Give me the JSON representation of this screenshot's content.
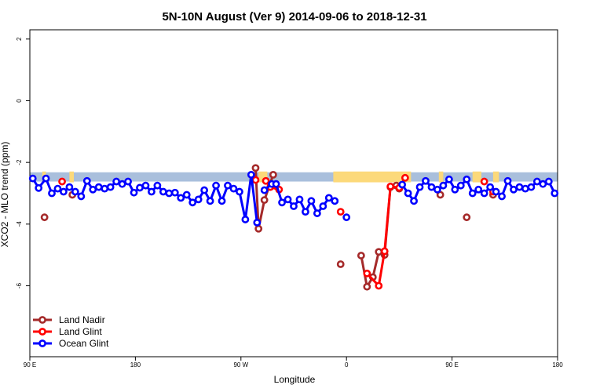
{
  "chart_data": {
    "type": "line",
    "title": "5N-10N August (Ver 9)   2014-09-06 to 2018-12-31",
    "xlabel": "Longitude",
    "ylabel": "XCO2 - MLO trend (ppm)",
    "xlim": [
      0,
      360
    ],
    "ylim": [
      -8.3,
      2.3
    ],
    "x_ticks": [
      {
        "value": 0,
        "label": "90 E"
      },
      {
        "value": 72,
        "label": "180"
      },
      {
        "value": 144,
        "label": "90 W"
      },
      {
        "value": 216,
        "label": "0"
      },
      {
        "value": 288,
        "label": "90 E"
      },
      {
        "value": 360,
        "label": "180"
      }
    ],
    "y_ticks": [
      {
        "value": 2,
        "label": "2"
      },
      {
        "value": 0,
        "label": "0"
      },
      {
        "value": -2,
        "label": "-2"
      },
      {
        "value": -4,
        "label": "-4"
      },
      {
        "value": -6,
        "label": "-6"
      }
    ],
    "band": {
      "y_min": -2.62,
      "y_max": -2.32,
      "color": "#a9bfdc"
    },
    "land_patches": {
      "color": "#fcd97a",
      "ranges": [
        [
          8.5,
          11
        ],
        [
          27,
          30
        ],
        [
          156,
          162
        ],
        [
          207,
          260
        ],
        [
          279,
          282
        ],
        [
          302,
          308
        ],
        [
          316,
          320
        ]
      ]
    },
    "legend_position": "bottom-left",
    "series": [
      {
        "name": "Land Nadir",
        "color": "#a52a2a",
        "points": [
          [
            10,
            -3.78
          ],
          [
            29,
            -3.05
          ],
          [
            154,
            -2.18
          ],
          [
            156,
            -4.15
          ],
          [
            160,
            -3.22
          ],
          [
            166,
            -2.4
          ],
          [
            212,
            -5.3
          ],
          [
            226,
            -5.02
          ],
          [
            230,
            -6.03
          ],
          [
            234,
            -5.72
          ],
          [
            238,
            -4.9
          ],
          [
            242,
            -5.0
          ],
          [
            246,
            -2.8
          ],
          [
            250,
            -2.75
          ],
          [
            252,
            -2.85
          ],
          [
            280,
            -3.05
          ],
          [
            298,
            -3.78
          ],
          [
            316,
            -3.05
          ]
        ],
        "segments": [
          [
            [
              154,
              -2.18
            ],
            [
              156,
              -4.15
            ],
            [
              160,
              -3.22
            ],
            [
              166,
              -2.4
            ]
          ],
          [
            [
              226,
              -5.02
            ],
            [
              230,
              -6.03
            ],
            [
              234,
              -5.72
            ],
            [
              238,
              -4.9
            ],
            [
              242,
              -5.0
            ],
            [
              246,
              -2.8
            ],
            [
              250,
              -2.75
            ],
            [
              252,
              -2.85
            ]
          ]
        ]
      },
      {
        "name": "Land Glint",
        "color": "#ff0000",
        "points": [
          [
            22,
            -2.62
          ],
          [
            154,
            -2.57
          ],
          [
            161,
            -2.6
          ],
          [
            164,
            -2.8
          ],
          [
            170,
            -2.88
          ],
          [
            212,
            -3.6
          ],
          [
            230,
            -5.6
          ],
          [
            238,
            -6.0
          ],
          [
            242,
            -4.88
          ],
          [
            246,
            -2.78
          ],
          [
            252,
            -2.82
          ],
          [
            256,
            -2.5
          ],
          [
            310,
            -2.62
          ],
          [
            316,
            -2.95
          ]
        ],
        "segments": [
          [
            [
              161,
              -2.6
            ],
            [
              164,
              -2.8
            ],
            [
              170,
              -2.88
            ]
          ],
          [
            [
              230,
              -5.6
            ],
            [
              238,
              -6.0
            ],
            [
              242,
              -4.88
            ],
            [
              246,
              -2.78
            ],
            [
              252,
              -2.82
            ],
            [
              256,
              -2.5
            ]
          ]
        ]
      },
      {
        "name": "Ocean Glint",
        "color": "#0000ff",
        "points": [
          [
            2,
            -2.52
          ],
          [
            6,
            -2.83
          ],
          [
            11,
            -2.52
          ],
          [
            15,
            -3.0
          ],
          [
            19,
            -2.85
          ],
          [
            23,
            -2.95
          ],
          [
            27,
            -2.8
          ],
          [
            31,
            -2.95
          ],
          [
            35,
            -3.1
          ],
          [
            39,
            -2.6
          ],
          [
            43,
            -2.88
          ],
          [
            47,
            -2.8
          ],
          [
            51,
            -2.85
          ],
          [
            55,
            -2.8
          ],
          [
            59,
            -2.62
          ],
          [
            63,
            -2.7
          ],
          [
            67,
            -2.62
          ],
          [
            71,
            -2.98
          ],
          [
            75,
            -2.82
          ],
          [
            79,
            -2.75
          ],
          [
            83,
            -2.95
          ],
          [
            87,
            -2.75
          ],
          [
            91,
            -2.95
          ],
          [
            95,
            -3.0
          ],
          [
            99,
            -2.98
          ],
          [
            103,
            -3.15
          ],
          [
            107,
            -3.05
          ],
          [
            111,
            -3.3
          ],
          [
            115,
            -3.2
          ],
          [
            119,
            -2.9
          ],
          [
            123,
            -3.25
          ],
          [
            127,
            -2.75
          ],
          [
            131,
            -3.25
          ],
          [
            135,
            -2.75
          ],
          [
            139,
            -2.85
          ],
          [
            143,
            -2.95
          ],
          [
            147,
            -3.85
          ],
          [
            151,
            -2.4
          ],
          [
            155,
            -3.95
          ],
          [
            160,
            -2.9
          ],
          [
            165,
            -2.7
          ],
          [
            168,
            -2.7
          ],
          [
            172,
            -3.3
          ],
          [
            176,
            -3.2
          ],
          [
            180,
            -3.42
          ],
          [
            184,
            -3.2
          ],
          [
            188,
            -3.6
          ],
          [
            192,
            -3.25
          ],
          [
            196,
            -3.65
          ],
          [
            200,
            -3.42
          ],
          [
            204,
            -3.15
          ],
          [
            208,
            -3.25
          ],
          [
            216,
            -3.78
          ],
          [
            254,
            -2.72
          ],
          [
            258,
            -3.0
          ],
          [
            262,
            -3.25
          ],
          [
            266,
            -2.8
          ],
          [
            270,
            -2.6
          ],
          [
            274,
            -2.8
          ],
          [
            278,
            -2.88
          ],
          [
            282,
            -2.75
          ],
          [
            286,
            -2.55
          ],
          [
            290,
            -2.88
          ],
          [
            294,
            -2.75
          ],
          [
            298,
            -2.55
          ],
          [
            302,
            -3.0
          ],
          [
            306,
            -2.88
          ],
          [
            310,
            -3.0
          ],
          [
            314,
            -2.8
          ],
          [
            318,
            -2.95
          ],
          [
            322,
            -3.1
          ],
          [
            326,
            -2.6
          ],
          [
            330,
            -2.88
          ],
          [
            334,
            -2.8
          ],
          [
            338,
            -2.85
          ],
          [
            342,
            -2.8
          ],
          [
            346,
            -2.62
          ],
          [
            350,
            -2.7
          ],
          [
            354,
            -2.62
          ],
          [
            358,
            -3.0
          ]
        ],
        "segments": [
          [
            [
              2,
              -2.52
            ],
            [
              6,
              -2.83
            ],
            [
              11,
              -2.52
            ],
            [
              15,
              -3.0
            ],
            [
              19,
              -2.85
            ],
            [
              23,
              -2.95
            ],
            [
              27,
              -2.8
            ],
            [
              31,
              -2.95
            ],
            [
              35,
              -3.1
            ],
            [
              39,
              -2.6
            ],
            [
              43,
              -2.88
            ],
            [
              47,
              -2.8
            ],
            [
              51,
              -2.85
            ],
            [
              55,
              -2.8
            ],
            [
              59,
              -2.62
            ],
            [
              63,
              -2.7
            ],
            [
              67,
              -2.62
            ],
            [
              71,
              -2.98
            ],
            [
              75,
              -2.82
            ],
            [
              79,
              -2.75
            ],
            [
              83,
              -2.95
            ],
            [
              87,
              -2.75
            ],
            [
              91,
              -2.95
            ],
            [
              95,
              -3.0
            ],
            [
              99,
              -2.98
            ],
            [
              103,
              -3.15
            ],
            [
              107,
              -3.05
            ],
            [
              111,
              -3.3
            ],
            [
              115,
              -3.2
            ],
            [
              119,
              -2.9
            ],
            [
              123,
              -3.25
            ],
            [
              127,
              -2.75
            ],
            [
              131,
              -3.25
            ],
            [
              135,
              -2.75
            ],
            [
              139,
              -2.85
            ],
            [
              143,
              -2.95
            ],
            [
              147,
              -3.85
            ],
            [
              151,
              -2.4
            ],
            [
              155,
              -3.95
            ]
          ],
          [
            [
              160,
              -2.9
            ],
            [
              165,
              -2.7
            ],
            [
              168,
              -2.7
            ],
            [
              172,
              -3.3
            ],
            [
              176,
              -3.2
            ],
            [
              180,
              -3.42
            ],
            [
              184,
              -3.2
            ],
            [
              188,
              -3.6
            ],
            [
              192,
              -3.25
            ],
            [
              196,
              -3.65
            ],
            [
              200,
              -3.42
            ],
            [
              204,
              -3.15
            ],
            [
              208,
              -3.25
            ]
          ],
          [
            [
              254,
              -2.72
            ],
            [
              258,
              -3.0
            ],
            [
              262,
              -3.25
            ],
            [
              266,
              -2.8
            ],
            [
              270,
              -2.6
            ],
            [
              274,
              -2.8
            ],
            [
              278,
              -2.88
            ],
            [
              282,
              -2.75
            ],
            [
              286,
              -2.55
            ],
            [
              290,
              -2.88
            ],
            [
              294,
              -2.75
            ],
            [
              298,
              -2.55
            ],
            [
              302,
              -3.0
            ],
            [
              306,
              -2.88
            ],
            [
              310,
              -3.0
            ],
            [
              314,
              -2.8
            ],
            [
              318,
              -2.95
            ],
            [
              322,
              -3.1
            ],
            [
              326,
              -2.6
            ],
            [
              330,
              -2.88
            ],
            [
              334,
              -2.8
            ],
            [
              338,
              -2.85
            ],
            [
              342,
              -2.8
            ],
            [
              346,
              -2.62
            ],
            [
              350,
              -2.7
            ],
            [
              354,
              -2.62
            ],
            [
              358,
              -3.0
            ]
          ]
        ]
      }
    ]
  }
}
